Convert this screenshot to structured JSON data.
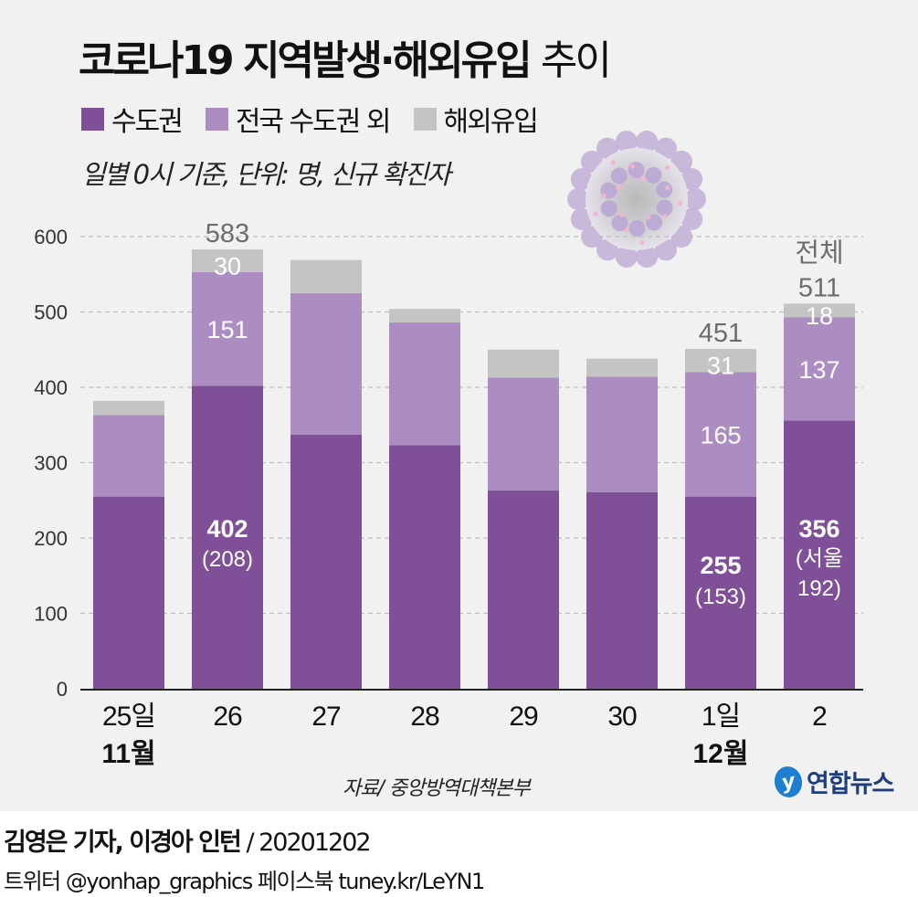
{
  "header": {
    "title_bold": "코로나19 지역발생·해외유입",
    "title_light": "추이",
    "subtitle": "일별 0시 기준, 단위: 명, 신규 확진자"
  },
  "legend": [
    {
      "label": "수도권",
      "color": "#7f4f97"
    },
    {
      "label": "전국 수도권 외",
      "color": "#ab8dc1"
    },
    {
      "label": "해외유입",
      "color": "#c4c4c4"
    }
  ],
  "illustration": {
    "icon": "coronavirus-icon"
  },
  "footer": {
    "source": "자료/ 중앙방역대책본부",
    "logo_mark": "y",
    "logo_name": "연합뉴스",
    "credit_names": "김영은 기자, 이경아 인턴",
    "credit_date": " / 20201202",
    "social": "트위터 @yonhap_graphics  페이스북 tuney.kr/LeYN1"
  },
  "chart_data": {
    "type": "bar",
    "stacked": true,
    "title": "코로나19 지역발생·해외유입 추이",
    "subtitle": "일별 0시 기준, 단위: 명, 신규 확진자",
    "xlabel": "",
    "ylabel": "",
    "ylim": [
      0,
      600
    ],
    "yticks": [
      0,
      100,
      200,
      300,
      400,
      500,
      600
    ],
    "grid": true,
    "legend_position": "top-left",
    "categories": [
      "25일",
      "26",
      "27",
      "28",
      "29",
      "30",
      "1일",
      "2"
    ],
    "month_labels": [
      "11월",
      "",
      "",
      "",
      "",
      "",
      "12월",
      ""
    ],
    "series": [
      {
        "name": "수도권",
        "color": "#7f4f97",
        "values": [
          255,
          402,
          337,
          323,
          263,
          261,
          255,
          356
        ]
      },
      {
        "name": "전국 수도권 외",
        "color": "#ab8dc1",
        "values": [
          108,
          151,
          188,
          163,
          150,
          153,
          165,
          137
        ]
      },
      {
        "name": "해외유입",
        "color": "#c4c4c4",
        "values": [
          19,
          30,
          44,
          18,
          37,
          24,
          31,
          18
        ]
      }
    ],
    "totals": [
      382,
      583,
      569,
      504,
      450,
      438,
      451,
      511
    ],
    "annotations": [
      {
        "index": 1,
        "capital": "402",
        "capital_note": "(208)",
        "other": "151",
        "imported": "30",
        "total": "583"
      },
      {
        "index": 6,
        "capital": "255",
        "capital_note": "(153)",
        "other": "165",
        "imported": "31",
        "total": "451"
      },
      {
        "index": 7,
        "capital": "356",
        "capital_note_line1": "(서울",
        "capital_note_line2": "192)",
        "other": "137",
        "imported": "18",
        "total_prefix": "전체",
        "total": "511"
      }
    ]
  }
}
